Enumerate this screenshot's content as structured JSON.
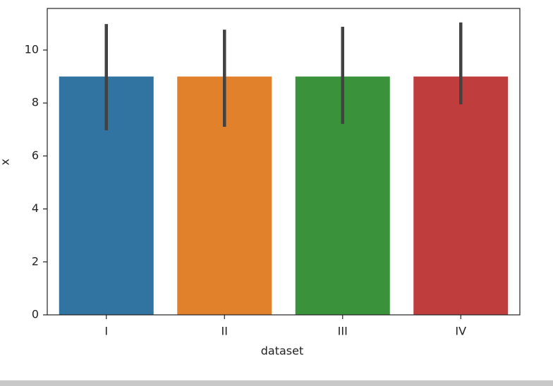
{
  "chart_data": {
    "type": "bar",
    "xlabel": "dataset",
    "ylabel": "x",
    "categories": [
      "I",
      "II",
      "III",
      "IV"
    ],
    "values": [
      9,
      9,
      9,
      9
    ],
    "colors": [
      "#3274a1",
      "#e1812c",
      "#3a923a",
      "#c03d3e"
    ],
    "ci_lower": [
      6.97,
      7.1,
      7.21,
      7.95
    ],
    "ci_upper": [
      10.98,
      10.77,
      10.88,
      11.04
    ],
    "errorbar_color": "#424242",
    "ylim": [
      0,
      11.57
    ],
    "yticks": [
      0,
      2,
      4,
      6,
      8,
      10
    ],
    "grid": false
  }
}
